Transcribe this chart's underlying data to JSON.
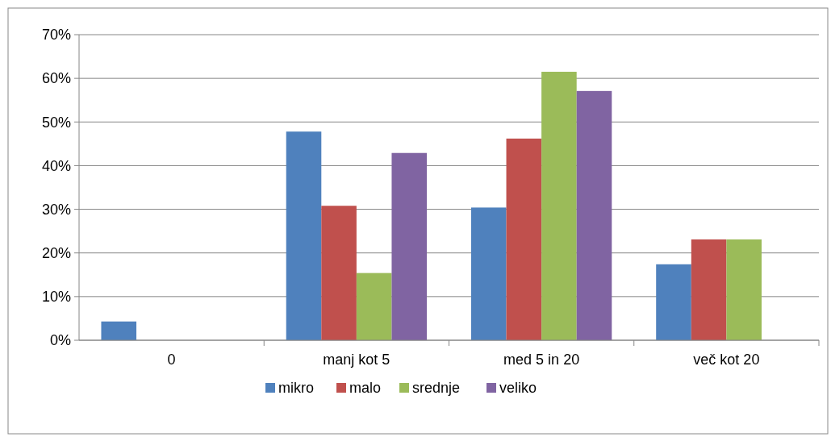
{
  "chart_data": {
    "type": "bar",
    "categories": [
      "0",
      "manj kot 5",
      "med 5 in 20",
      "več kot 20"
    ],
    "series": [
      {
        "name": "mikro",
        "color": "#4f81bd",
        "values": [
          4.3,
          47.8,
          30.4,
          17.4
        ]
      },
      {
        "name": "malo",
        "color": "#c0504d",
        "values": [
          0,
          30.8,
          46.2,
          23.1
        ]
      },
      {
        "name": "srednje",
        "color": "#9bbb59",
        "values": [
          0,
          15.4,
          61.5,
          23.1
        ]
      },
      {
        "name": "veliko",
        "color": "#8064a2",
        "values": [
          0,
          42.9,
          57.1,
          0
        ]
      }
    ],
    "ylim": [
      0,
      70
    ],
    "yticks": [
      {
        "value": 0,
        "label": "0%"
      },
      {
        "value": 10,
        "label": "10%"
      },
      {
        "value": 20,
        "label": "20%"
      },
      {
        "value": 30,
        "label": "30%"
      },
      {
        "value": 40,
        "label": "40%"
      },
      {
        "value": 50,
        "label": "50%"
      },
      {
        "value": 60,
        "label": "60%"
      },
      {
        "value": 70,
        "label": "70%"
      }
    ],
    "grid": "y",
    "legend": "bottom"
  }
}
